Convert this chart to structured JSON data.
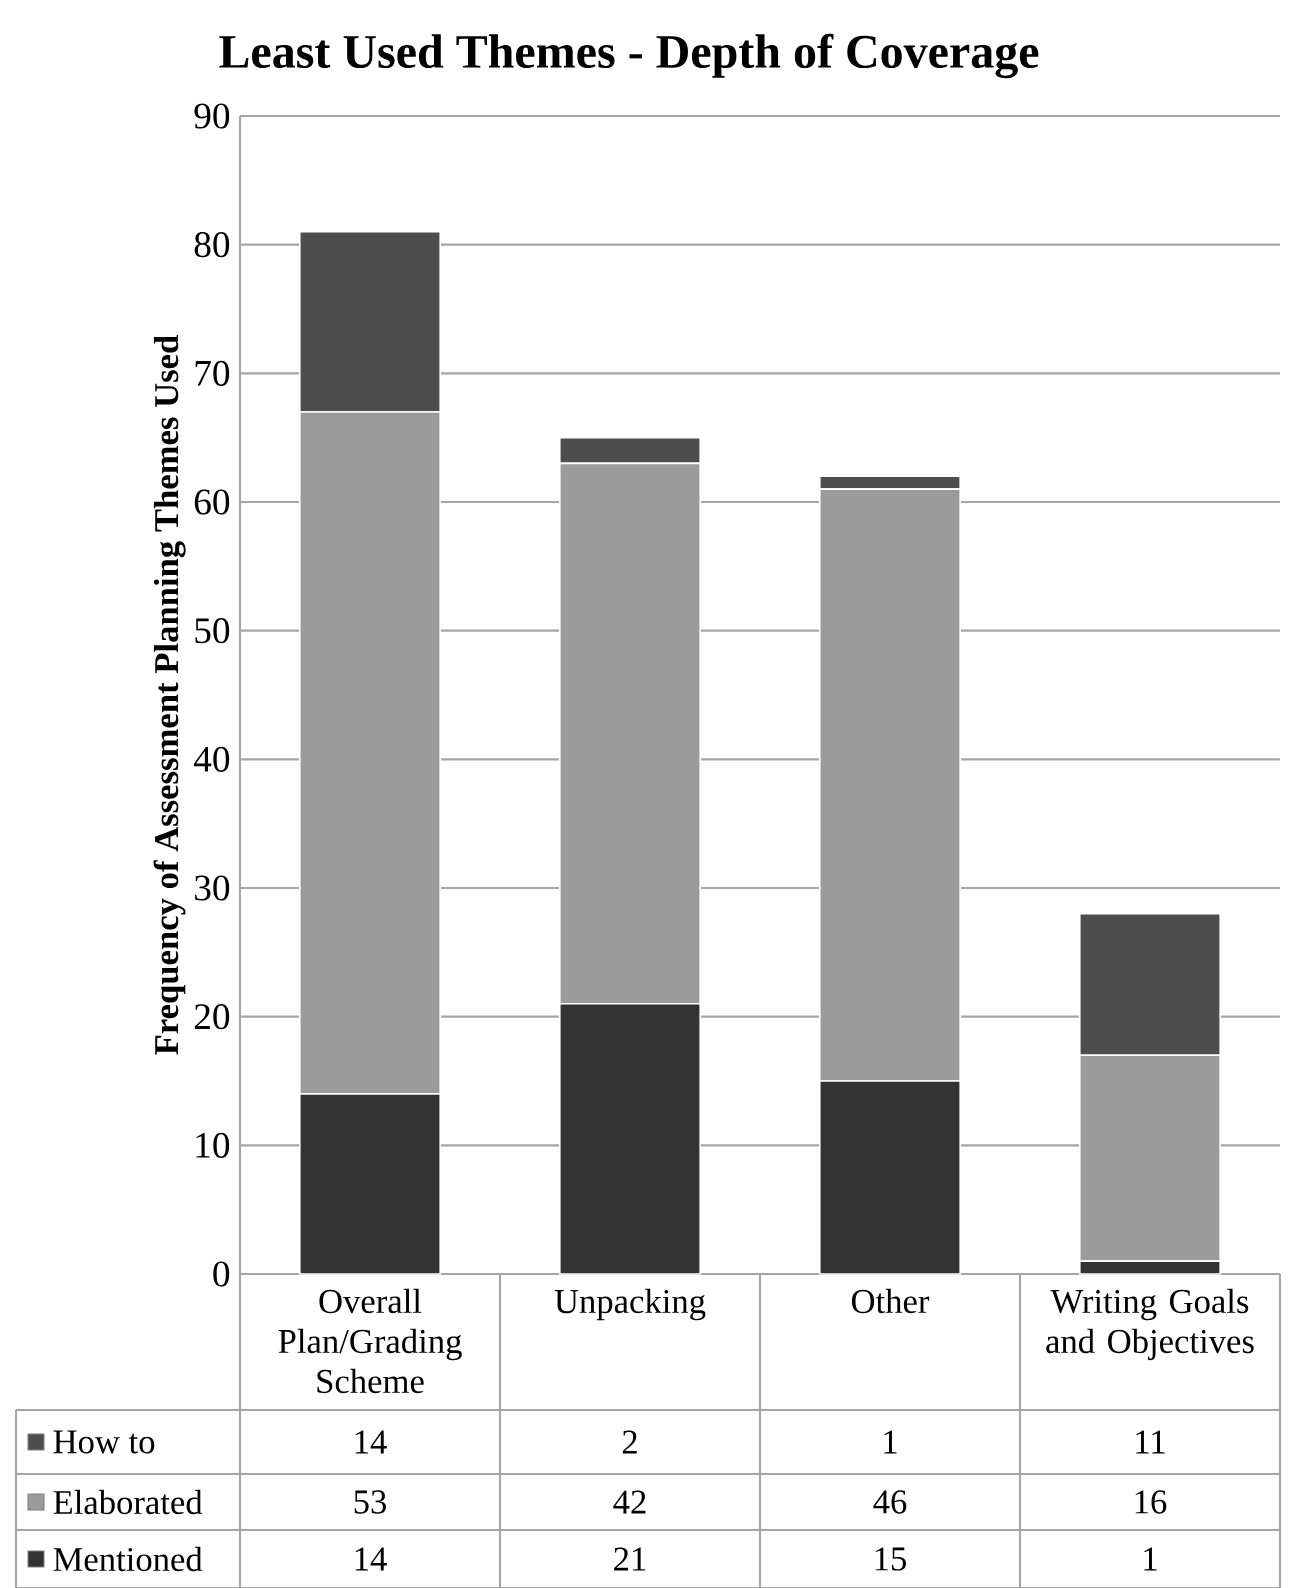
{
  "chart_data": {
    "type": "bar",
    "title": "Least Used Themes - Depth of Coverage",
    "ylabel": "Frequency of Assessment Planning Themes Used",
    "categories": [
      "Overall Plan/Grading Scheme",
      "Unpacking",
      "Other",
      "Writing Goals and Objectives"
    ],
    "series": [
      {
        "name": "Mentioned",
        "color": "#333333",
        "values": [
          14,
          21,
          15,
          1
        ]
      },
      {
        "name": "Elaborated",
        "color": "#9b9b9b",
        "values": [
          53,
          42,
          46,
          16
        ]
      },
      {
        "name": "How to",
        "color": "#4d4d4d",
        "values": [
          14,
          2,
          1,
          11
        ]
      }
    ],
    "stacked": true,
    "ylim": [
      0,
      90
    ],
    "yticks": [
      0,
      10,
      20,
      30,
      40,
      50,
      60,
      70,
      80,
      90
    ],
    "grid": "y",
    "legend": "bottom",
    "data_labels": true
  }
}
